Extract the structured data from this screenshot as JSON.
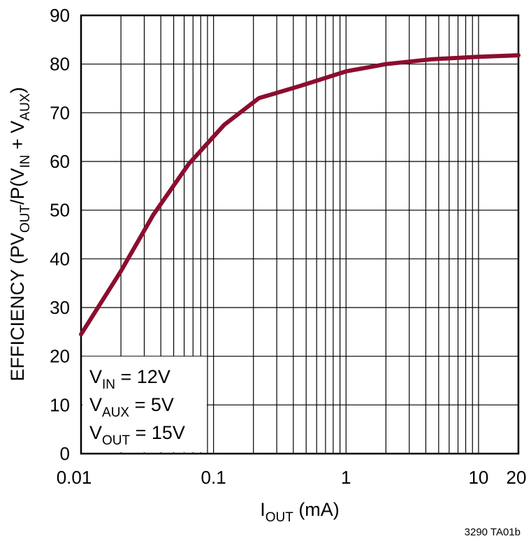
{
  "figure_id": "3290 TA01b",
  "chart_data": {
    "type": "line",
    "xlabel": {
      "main": "I",
      "sub": "OUT",
      "rest": " (mA)"
    },
    "ylabel": {
      "p1": "EFFICIENCY (PV",
      "s1": "OUT",
      "p2": "/P(V",
      "s2": "IN",
      "p3": " + V",
      "s3": "AUX",
      "p4": ")"
    },
    "x_scale": "log",
    "xlim": [
      0.01,
      20
    ],
    "ylim": [
      0,
      90
    ],
    "x_ticks": [
      0.01,
      0.1,
      1,
      10,
      20
    ],
    "x_tick_labels": [
      "0.01",
      "0.1",
      "1",
      "10",
      "20"
    ],
    "y_ticks": [
      0,
      10,
      20,
      30,
      40,
      50,
      60,
      70,
      80,
      90
    ],
    "y_tick_labels": [
      "0",
      "10",
      "20",
      "30",
      "40",
      "50",
      "60",
      "70",
      "80",
      "90"
    ],
    "grid": true,
    "line_color": "#8b0d2f",
    "legend_position": "bottom-left",
    "conditions": [
      {
        "main": "V",
        "sub": "IN",
        "rest": " = 12V"
      },
      {
        "main": "V",
        "sub": "AUX",
        "rest": " = 5V"
      },
      {
        "main": "V",
        "sub": "OUT",
        "rest": " = 15V"
      }
    ],
    "series": [
      {
        "x": [
          0.01,
          0.02,
          0.035,
          0.065,
          0.12,
          0.22,
          0.45,
          1,
          2,
          4.5,
          10,
          20
        ],
        "values": [
          24.5,
          37.5,
          49,
          59.5,
          67.5,
          73,
          75.5,
          78.5,
          80,
          81,
          81.5,
          81.8
        ]
      }
    ]
  }
}
